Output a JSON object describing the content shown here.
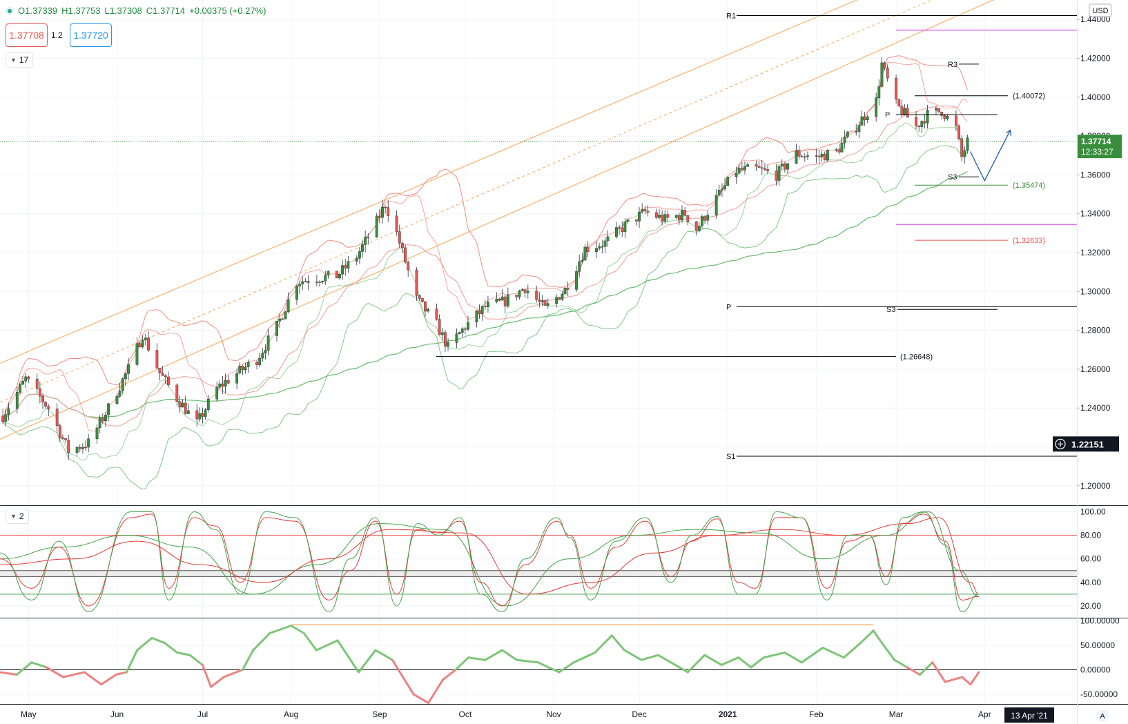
{
  "header": {
    "open": "O1.37339",
    "high": "H1.37753",
    "low": "L1.37308",
    "close": "C1.37714",
    "change": "+0.00375 (+0.27%)",
    "bid": "1.37708",
    "spread": "1.2",
    "ask": "1.37720",
    "pane1_badge": "17",
    "pane2_badge": "2"
  },
  "axis": {
    "currency": "USD",
    "price_ticks": [
      "1.44000",
      "1.42000",
      "1.40000",
      "1.38000",
      "1.36000",
      "1.34000",
      "1.32000",
      "1.30000",
      "1.28000",
      "1.26000",
      "1.24000",
      "1.22000",
      "1.20000"
    ],
    "price_ticks_values": [
      1.44,
      1.42,
      1.4,
      1.38,
      1.36,
      1.34,
      1.32,
      1.3,
      1.28,
      1.26,
      1.24,
      1.22,
      1.2
    ],
    "stoch_ticks": [
      "100.00",
      "80.00",
      "60.00",
      "40.00",
      "20.00"
    ],
    "stoch_values": [
      100,
      80,
      60,
      40,
      20
    ],
    "mom_ticks": [
      "100.00000",
      "50.00000",
      "0.00000",
      "-50.00000"
    ],
    "mom_values": [
      100,
      50,
      0,
      -50
    ],
    "time_labels": [
      "May",
      "Jun",
      "Jul",
      "Aug",
      "Sep",
      "Oct",
      "Nov",
      "Dec",
      "2021",
      "Feb",
      "Mar",
      "Apr"
    ],
    "cursor_date": "13 Apr '21",
    "auto_label": "A"
  },
  "colors": {
    "up": "#388e3c",
    "down": "#ef5350",
    "channel": "#f7b26a",
    "bb_upper": "#f28b82",
    "bb_lower": "#81c784",
    "ma_long": "#66bb6a",
    "magenta": "#e040fb",
    "forecast": "#1e5aa8",
    "price_box": "#388e3c"
  },
  "chart_data": [
    {
      "type": "candlestick",
      "pane": "price",
      "instrument_currency": "USD",
      "last_price": "1.37714",
      "countdown": "12:33:27",
      "crosshair_price": "1.22151",
      "ylim": [
        1.19,
        1.45
      ],
      "x_labels": [
        "May",
        "Jun",
        "Jul",
        "Aug",
        "Sep",
        "Oct",
        "Nov",
        "Dec",
        "2021",
        "Feb",
        "Mar",
        "Apr"
      ],
      "close_path": [
        [
          "2020-04-22",
          1.236
        ],
        [
          "2020-04-30",
          1.255
        ],
        [
          "2020-05-08",
          1.24
        ],
        [
          "2020-05-15",
          1.218
        ],
        [
          "2020-05-22",
          1.222
        ],
        [
          "2020-05-29",
          1.24
        ],
        [
          "2020-06-05",
          1.26
        ],
        [
          "2020-06-10",
          1.278
        ],
        [
          "2020-06-16",
          1.258
        ],
        [
          "2020-06-22",
          1.245
        ],
        [
          "2020-06-29",
          1.232
        ],
        [
          "2020-07-06",
          1.25
        ],
        [
          "2020-07-13",
          1.258
        ],
        [
          "2020-07-20",
          1.265
        ],
        [
          "2020-07-27",
          1.282
        ],
        [
          "2020-08-03",
          1.305
        ],
        [
          "2020-08-10",
          1.307
        ],
        [
          "2020-08-17",
          1.308
        ],
        [
          "2020-08-24",
          1.318
        ],
        [
          "2020-08-31",
          1.336
        ],
        [
          "2020-09-03",
          1.345
        ],
        [
          "2020-09-07",
          1.33
        ],
        [
          "2020-09-14",
          1.296
        ],
        [
          "2020-09-21",
          1.283
        ],
        [
          "2020-09-25",
          1.271
        ],
        [
          "2020-10-01",
          1.282
        ],
        [
          "2020-10-08",
          1.292
        ],
        [
          "2020-10-15",
          1.295
        ],
        [
          "2020-10-22",
          1.302
        ],
        [
          "2020-10-29",
          1.291
        ],
        [
          "2020-11-05",
          1.301
        ],
        [
          "2020-11-12",
          1.322
        ],
        [
          "2020-11-19",
          1.325
        ],
        [
          "2020-11-26",
          1.334
        ],
        [
          "2020-12-03",
          1.341
        ],
        [
          "2020-12-10",
          1.337
        ],
        [
          "2020-12-17",
          1.34
        ],
        [
          "2020-12-21",
          1.332
        ],
        [
          "2020-12-28",
          1.348
        ],
        [
          "2021-01-04",
          1.362
        ],
        [
          "2021-01-11",
          1.363
        ],
        [
          "2021-01-18",
          1.36
        ],
        [
          "2021-01-25",
          1.371
        ],
        [
          "2021-02-01",
          1.369
        ],
        [
          "2021-02-08",
          1.372
        ],
        [
          "2021-02-15",
          1.385
        ],
        [
          "2021-02-22",
          1.398
        ],
        [
          "2021-02-24",
          1.417
        ],
        [
          "2021-03-01",
          1.396
        ],
        [
          "2021-03-08",
          1.385
        ],
        [
          "2021-03-12",
          1.391
        ],
        [
          "2021-03-17",
          1.393
        ],
        [
          "2021-03-22",
          1.384
        ],
        [
          "2021-03-24",
          1.369
        ],
        [
          "2021-03-26",
          1.377
        ]
      ],
      "levels": [
        {
          "label": "R1",
          "value": 1.442
        },
        {
          "label": "R3",
          "value": 1.417
        },
        {
          "label": "(1.40072)",
          "value": 1.40072
        },
        {
          "label": "P",
          "value": 1.391
        },
        {
          "label": "S3",
          "value": 1.359
        },
        {
          "label": "(1.35474)",
          "value": 1.35474
        },
        {
          "label": "(1.32633)",
          "value": 1.32633
        },
        {
          "label": "P",
          "value": 1.2922
        },
        {
          "label": "S3",
          "value": 1.2908
        },
        {
          "label": "(1.26648)",
          "value": 1.26648
        },
        {
          "label": "S1",
          "value": 1.2152
        }
      ],
      "forecast": [
        [
          "2021-03-27",
          1.372
        ],
        [
          "2021-04-01",
          1.357
        ],
        [
          "2021-04-10",
          1.383
        ]
      ]
    },
    {
      "type": "line",
      "pane": "stochastic",
      "ylim": [
        10,
        105
      ],
      "reference_lines": [
        80,
        50,
        45,
        30
      ],
      "series_fast": [
        [
          0,
          65
        ],
        [
          15,
          25
        ],
        [
          28,
          75
        ],
        [
          42,
          15
        ],
        [
          62,
          100
        ],
        [
          72,
          100
        ],
        [
          80,
          25
        ],
        [
          92,
          100
        ],
        [
          102,
          85
        ],
        [
          114,
          30
        ],
        [
          126,
          100
        ],
        [
          140,
          95
        ],
        [
          156,
          15
        ],
        [
          166,
          60
        ],
        [
          178,
          95
        ],
        [
          188,
          20
        ],
        [
          198,
          90
        ],
        [
          208,
          80
        ],
        [
          218,
          95
        ],
        [
          228,
          30
        ],
        [
          238,
          15
        ],
        [
          249,
          60
        ],
        [
          264,
          95
        ],
        [
          270,
          78
        ],
        [
          280,
          25
        ],
        [
          292,
          75
        ],
        [
          306,
          95
        ],
        [
          318,
          40
        ],
        [
          328,
          80
        ],
        [
          340,
          96
        ],
        [
          350,
          30
        ],
        [
          358,
          30
        ],
        [
          368,
          100
        ],
        [
          380,
          95
        ],
        [
          392,
          25
        ],
        [
          402,
          80
        ],
        [
          412,
          80
        ],
        [
          420,
          38
        ],
        [
          428,
          95
        ],
        [
          438,
          100
        ],
        [
          448,
          72
        ],
        [
          456,
          15
        ],
        [
          464,
          30
        ]
      ],
      "series_slow": [
        [
          0,
          60
        ],
        [
          15,
          35
        ],
        [
          28,
          70
        ],
        [
          42,
          20
        ],
        [
          62,
          95
        ],
        [
          72,
          98
        ],
        [
          80,
          35
        ],
        [
          92,
          95
        ],
        [
          102,
          88
        ],
        [
          114,
          40
        ],
        [
          126,
          95
        ],
        [
          140,
          92
        ],
        [
          156,
          25
        ],
        [
          166,
          50
        ],
        [
          178,
          92
        ],
        [
          188,
          30
        ],
        [
          198,
          85
        ],
        [
          208,
          82
        ],
        [
          218,
          92
        ],
        [
          228,
          40
        ],
        [
          238,
          20
        ],
        [
          249,
          55
        ],
        [
          264,
          92
        ],
        [
          270,
          80
        ],
        [
          280,
          35
        ],
        [
          292,
          70
        ],
        [
          306,
          92
        ],
        [
          318,
          45
        ],
        [
          328,
          75
        ],
        [
          340,
          94
        ],
        [
          350,
          40
        ],
        [
          358,
          35
        ],
        [
          368,
          95
        ],
        [
          380,
          95
        ],
        [
          392,
          35
        ],
        [
          402,
          75
        ],
        [
          412,
          80
        ],
        [
          420,
          45
        ],
        [
          428,
          90
        ],
        [
          438,
          98
        ],
        [
          448,
          75
        ],
        [
          456,
          25
        ],
        [
          464,
          28
        ]
      ],
      "series_smooth": [
        [
          0,
          60
        ],
        [
          30,
          70
        ],
        [
          60,
          80
        ],
        [
          90,
          70
        ],
        [
          120,
          30
        ],
        [
          150,
          55
        ],
        [
          180,
          90
        ],
        [
          210,
          85
        ],
        [
          240,
          20
        ],
        [
          270,
          60
        ],
        [
          300,
          80
        ],
        [
          330,
          85
        ],
        [
          360,
          82
        ],
        [
          390,
          60
        ],
        [
          420,
          80
        ],
        [
          440,
          100
        ],
        [
          455,
          50
        ],
        [
          464,
          28
        ]
      ],
      "series_signal": [
        [
          0,
          55
        ],
        [
          35,
          60
        ],
        [
          65,
          75
        ],
        [
          95,
          55
        ],
        [
          125,
          40
        ],
        [
          155,
          60
        ],
        [
          185,
          85
        ],
        [
          220,
          82
        ],
        [
          250,
          30
        ],
        [
          280,
          40
        ],
        [
          310,
          65
        ],
        [
          340,
          80
        ],
        [
          370,
          85
        ],
        [
          400,
          80
        ],
        [
          430,
          90
        ],
        [
          445,
          95
        ],
        [
          460,
          40
        ],
        [
          464,
          30
        ]
      ]
    },
    {
      "type": "line",
      "pane": "momentum",
      "ylim": [
        -70,
        105
      ],
      "x_index_range": [
        0,
        468
      ],
      "values": [
        [
          0,
          -5
        ],
        [
          8,
          -10
        ],
        [
          15,
          15
        ],
        [
          22,
          5
        ],
        [
          30,
          -15
        ],
        [
          40,
          -5
        ],
        [
          48,
          -30
        ],
        [
          55,
          -10
        ],
        [
          60,
          -5
        ],
        [
          65,
          40
        ],
        [
          72,
          65
        ],
        [
          78,
          55
        ],
        [
          84,
          35
        ],
        [
          90,
          30
        ],
        [
          96,
          10
        ],
        [
          100,
          -35
        ],
        [
          106,
          -15
        ],
        [
          115,
          0
        ],
        [
          120,
          40
        ],
        [
          128,
          75
        ],
        [
          138,
          90
        ],
        [
          144,
          75
        ],
        [
          150,
          40
        ],
        [
          160,
          60
        ],
        [
          170,
          -5
        ],
        [
          178,
          40
        ],
        [
          186,
          20
        ],
        [
          196,
          -50
        ],
        [
          203,
          -68
        ],
        [
          210,
          -20
        ],
        [
          216,
          0
        ],
        [
          222,
          25
        ],
        [
          230,
          20
        ],
        [
          238,
          40
        ],
        [
          245,
          20
        ],
        [
          255,
          15
        ],
        [
          265,
          -5
        ],
        [
          272,
          15
        ],
        [
          282,
          35
        ],
        [
          290,
          70
        ],
        [
          296,
          40
        ],
        [
          304,
          20
        ],
        [
          312,
          30
        ],
        [
          320,
          10
        ],
        [
          326,
          -5
        ],
        [
          334,
          30
        ],
        [
          342,
          10
        ],
        [
          350,
          25
        ],
        [
          356,
          5
        ],
        [
          362,
          25
        ],
        [
          372,
          35
        ],
        [
          380,
          15
        ],
        [
          390,
          45
        ],
        [
          400,
          25
        ],
        [
          408,
          55
        ],
        [
          414,
          80
        ],
        [
          418,
          55
        ],
        [
          424,
          20
        ],
        [
          430,
          5
        ],
        [
          436,
          -10
        ],
        [
          442,
          15
        ],
        [
          448,
          -25
        ],
        [
          456,
          -15
        ],
        [
          460,
          -30
        ],
        [
          464,
          -5
        ]
      ],
      "divergence_line_from": 90,
      "divergence_line_to": 90
    }
  ]
}
